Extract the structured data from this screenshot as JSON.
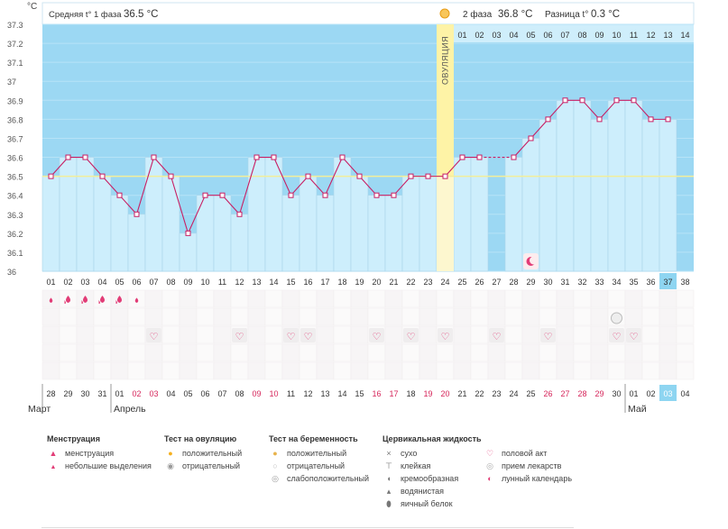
{
  "header": {
    "y_unit": "°C",
    "phase1_text": "Средняя t° 1 фаза",
    "phase1_value": "36.5 °C",
    "phase2_text": "2 фаза",
    "phase2_value": "36.8 °C",
    "diff_text": "Разница t°",
    "diff_value": "0.3 °C"
  },
  "ovulation_label": "ОВУЛЯЦИЯ",
  "phase2_day_numbers": [
    "01",
    "02",
    "03",
    "04",
    "05",
    "06",
    "07",
    "08",
    "09",
    "10",
    "11",
    "12",
    "13",
    "14"
  ],
  "cycle_days": [
    "01",
    "02",
    "03",
    "04",
    "05",
    "06",
    "07",
    "08",
    "09",
    "10",
    "11",
    "12",
    "13",
    "14",
    "15",
    "16",
    "17",
    "18",
    "19",
    "20",
    "21",
    "22",
    "23",
    "24",
    "25",
    "26",
    "27",
    "28",
    "29",
    "30",
    "31",
    "32",
    "33",
    "34",
    "35",
    "36",
    "37",
    "38"
  ],
  "current_cycle_day": "37",
  "calendar_dates": [
    "28",
    "29",
    "30",
    "31",
    "01",
    "02",
    "03",
    "04",
    "05",
    "06",
    "07",
    "08",
    "09",
    "10",
    "11",
    "12",
    "13",
    "14",
    "15",
    "16",
    "17",
    "18",
    "19",
    "20",
    "21",
    "22",
    "23",
    "24",
    "25",
    "26",
    "27",
    "28",
    "29",
    "30",
    "01",
    "02",
    "03",
    "04"
  ],
  "weekend_date_indices": [
    5,
    6,
    12,
    13,
    19,
    20,
    22,
    23,
    29,
    30,
    31,
    32
  ],
  "today_date_index": 36,
  "months": [
    {
      "name": "Март",
      "start_index": 0
    },
    {
      "name": "Апрель",
      "start_index": 4
    },
    {
      "name": "Май",
      "start_index": 34
    }
  ],
  "chart_data": {
    "type": "line",
    "x": [
      1,
      2,
      3,
      4,
      5,
      6,
      7,
      8,
      9,
      10,
      11,
      12,
      13,
      14,
      15,
      16,
      17,
      18,
      19,
      20,
      21,
      22,
      23,
      24,
      25,
      26,
      27,
      28,
      29,
      30,
      31,
      32,
      33,
      34,
      35,
      36,
      37,
      38
    ],
    "temperature": [
      36.5,
      36.6,
      36.6,
      36.5,
      36.4,
      36.3,
      36.6,
      36.5,
      36.2,
      36.4,
      36.4,
      36.3,
      36.6,
      36.6,
      36.4,
      36.5,
      36.4,
      36.6,
      36.5,
      36.4,
      36.4,
      36.5,
      36.5,
      36.5,
      36.6,
      36.6,
      null,
      36.6,
      36.7,
      36.8,
      36.9,
      36.9,
      36.8,
      36.9,
      36.9,
      36.8,
      36.8,
      null
    ],
    "coverline": 36.5,
    "ovulation_day": 24,
    "y_range": [
      36.0,
      37.3
    ],
    "y_ticks": [
      "36",
      "36.1",
      "36.2",
      "36.3",
      "36.4",
      "36.5",
      "36.6",
      "36.7",
      "36.8",
      "36.9",
      "37",
      "37.1",
      "37.2",
      "37.3"
    ],
    "dashed_segment_days": [
      26,
      28
    ]
  },
  "marks": {
    "menstruation_heavy_days": [
      2,
      3,
      4,
      5
    ],
    "menstruation_light_days": [
      1,
      6
    ],
    "pregnancy_test_negative_days": [
      34
    ],
    "intercourse_days": [
      7,
      12,
      15,
      16,
      20,
      22,
      24,
      27,
      30,
      34,
      35
    ],
    "lunar_days": [
      29
    ]
  },
  "legend": {
    "menstruation": {
      "title": "Менструация",
      "items": [
        "менструация",
        "небольшие выделения"
      ]
    },
    "ovulation_test": {
      "title": "Тест на овуляцию",
      "items": [
        "положительный",
        "отрицательный"
      ]
    },
    "pregnancy_test": {
      "title": "Тест на беременность",
      "items": [
        "положительный",
        "отрицательный",
        "слабоположительный"
      ]
    },
    "cervical": {
      "title": "Цервикальная жидкость",
      "items": [
        "сухо",
        "клейкая",
        "кремообразная",
        "водянистая",
        "яичный белок"
      ]
    },
    "other": {
      "items": [
        "половой акт",
        "прием лекарств",
        "лунный календарь"
      ]
    }
  },
  "colors": {
    "plot_blue": "#9cd8f3",
    "bar_fill": "#cdeefc",
    "bar_stroke": "#a9d4ea",
    "line": "#c81e63",
    "coverline": "#f2ee9a",
    "ovulation": "#fef3a6",
    "ovulation_light": "#fdf7cf",
    "weekend": "#d6275c",
    "menstruation": "#e23d77",
    "today": "#8ed5f1"
  }
}
